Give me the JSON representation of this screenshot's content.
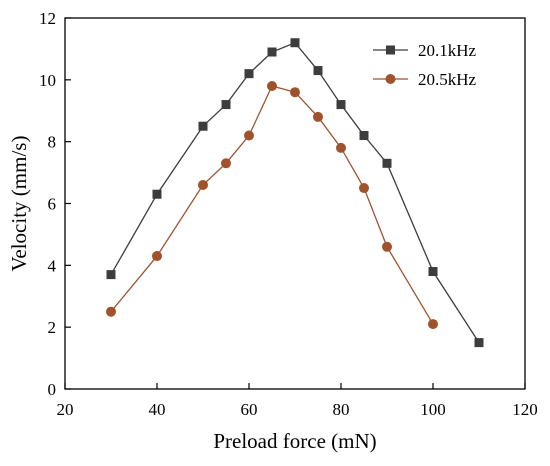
{
  "chart_data": {
    "type": "line",
    "title": "",
    "xlabel": "Preload force (mN)",
    "ylabel": "Velocity (mm/s)",
    "xlim": [
      20,
      120
    ],
    "ylim": [
      0,
      12
    ],
    "xticks": [
      20,
      40,
      60,
      80,
      100,
      120
    ],
    "yticks": [
      0,
      2,
      4,
      6,
      8,
      10,
      12
    ],
    "grid": false,
    "legend_position": "top-right",
    "series": [
      {
        "name": "20.1kHz",
        "color": "#3d3d3d",
        "marker": "square",
        "x": [
          30,
          40,
          50,
          55,
          60,
          65,
          70,
          75,
          80,
          85,
          90,
          100,
          110
        ],
        "y": [
          3.7,
          6.3,
          8.5,
          9.2,
          10.2,
          10.9,
          11.2,
          10.3,
          9.2,
          8.2,
          7.3,
          3.8,
          1.5
        ]
      },
      {
        "name": "20.5kHz",
        "color": "#a0522d",
        "marker": "circle",
        "x": [
          30,
          40,
          50,
          55,
          60,
          65,
          70,
          75,
          80,
          85,
          90,
          100
        ],
        "y": [
          2.5,
          4.3,
          6.6,
          7.3,
          8.2,
          9.8,
          9.6,
          8.8,
          7.8,
          6.5,
          4.6,
          2.1
        ]
      }
    ]
  }
}
